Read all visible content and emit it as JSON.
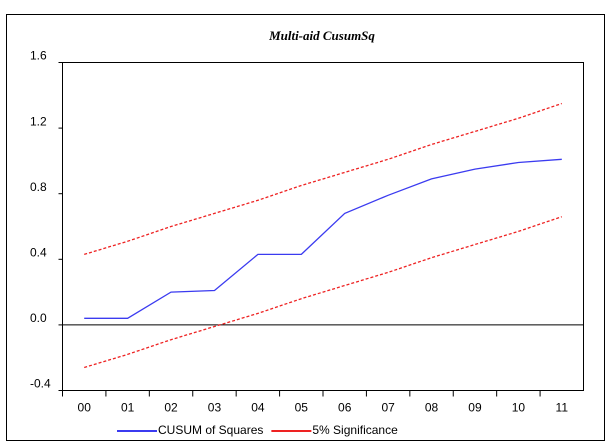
{
  "chart_data": {
    "type": "line",
    "title": "Multi-aid CusumSq",
    "categories": [
      "00",
      "01",
      "02",
      "03",
      "04",
      "05",
      "06",
      "07",
      "08",
      "09",
      "10",
      "11"
    ],
    "series": [
      {
        "name": "CUSUM of Squares",
        "color": "#3b3bf0",
        "dashed": false,
        "values": [
          0.04,
          0.04,
          0.2,
          0.21,
          0.43,
          0.43,
          0.68,
          0.79,
          0.89,
          0.95,
          0.99,
          1.01
        ]
      },
      {
        "name": "5% Significance",
        "color": "#ee2222",
        "dashed": true,
        "values": [
          0.43,
          0.51,
          0.6,
          0.68,
          0.76,
          0.85,
          0.93,
          1.01,
          1.1,
          1.18,
          1.26,
          1.35
        ]
      },
      {
        "name": "5% Significance",
        "color": "#ee2222",
        "dashed": true,
        "values": [
          -0.26,
          -0.18,
          -0.09,
          -0.01,
          0.07,
          0.16,
          0.24,
          0.32,
          0.41,
          0.49,
          0.57,
          0.66
        ]
      }
    ],
    "ylim": [
      -0.4,
      1.6
    ],
    "yticks": [
      -0.4,
      {
        "value": 0,
        "label": "0.0"
      },
      0.4,
      0.8,
      1.2,
      1.6
    ],
    "zero_line": true,
    "legend": "bottom"
  }
}
